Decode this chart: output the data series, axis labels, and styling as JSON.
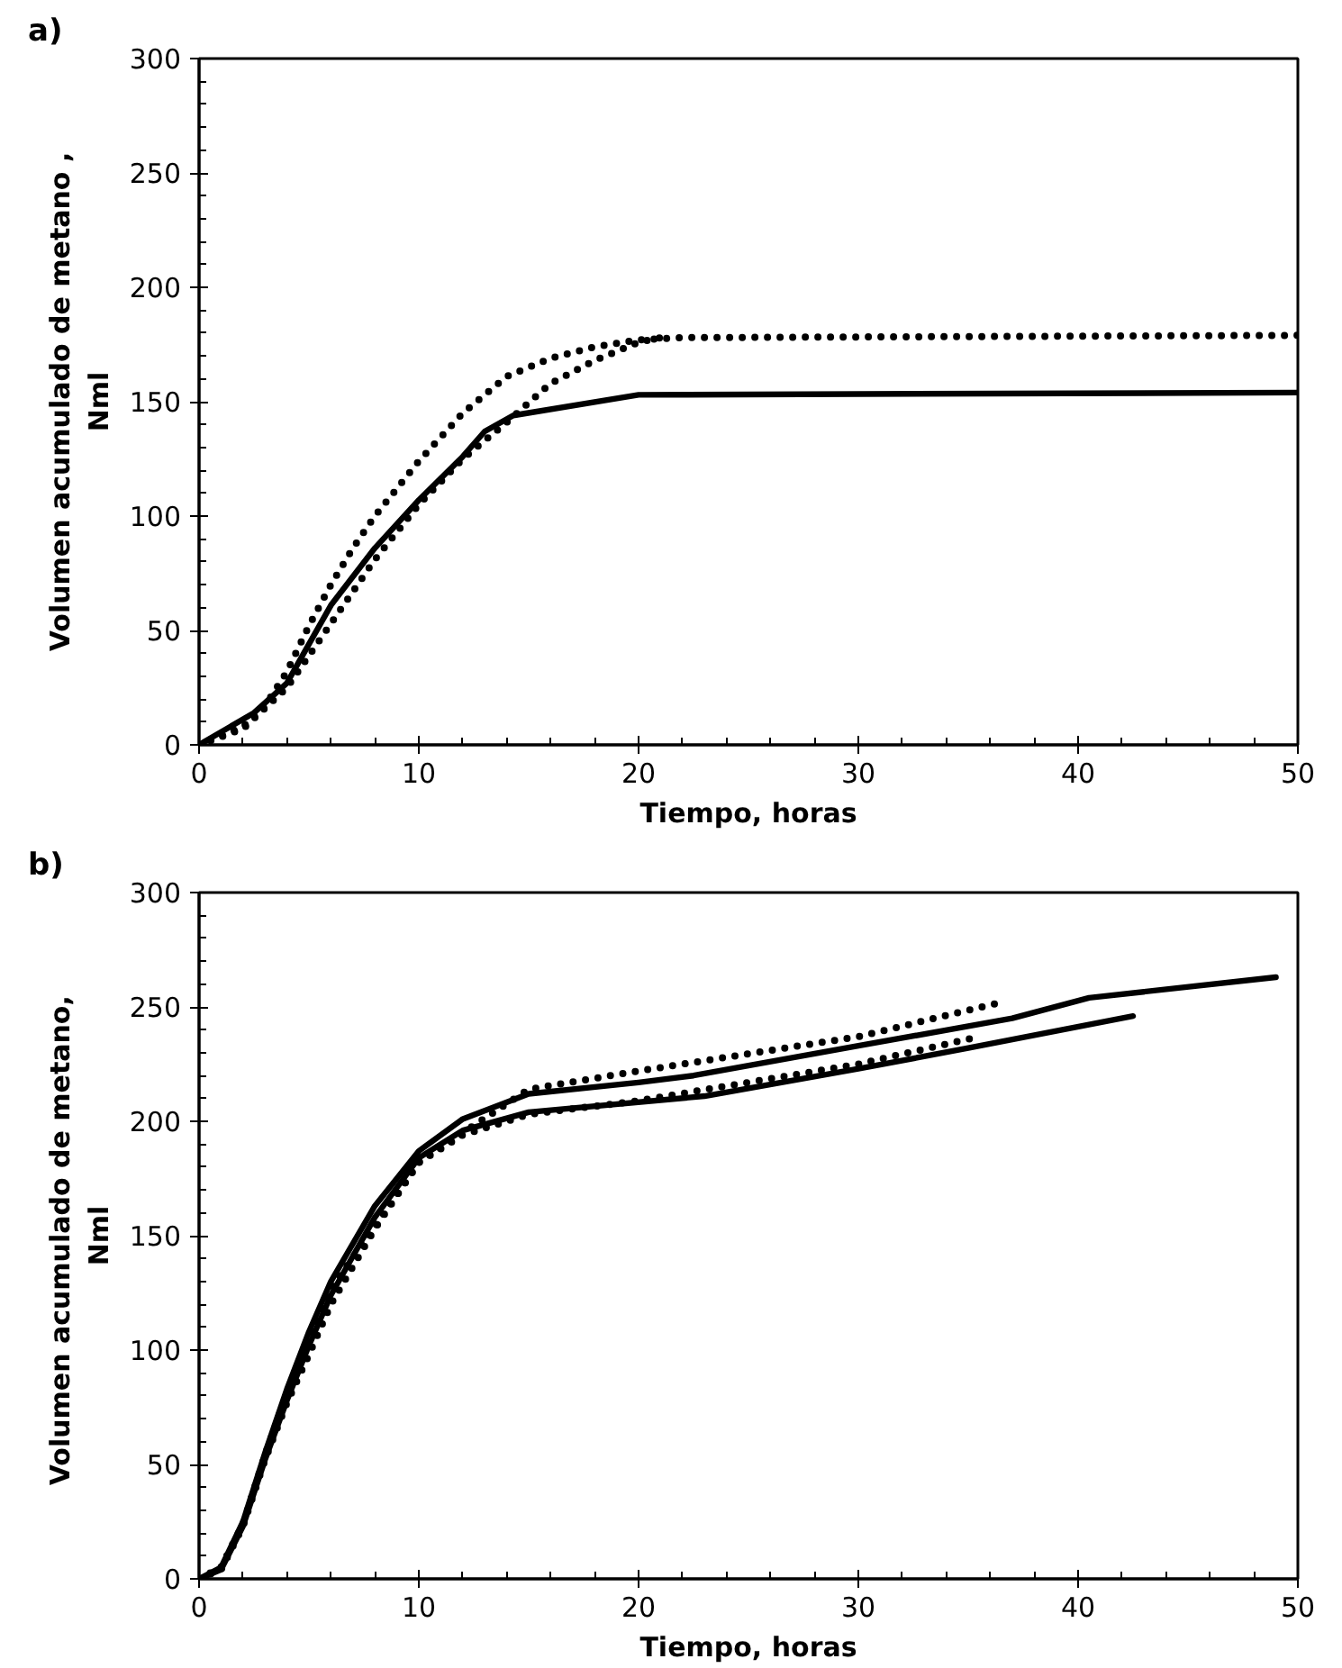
{
  "chart_data": [
    {
      "type": "line",
      "title": "a)",
      "xlabel": "Tiempo, horas",
      "ylabel": "Volumen acumulado de metano ,\nNml",
      "xlim": [
        0,
        50
      ],
      "ylim": [
        0,
        300
      ],
      "xticks": [
        0,
        10,
        20,
        30,
        40,
        50
      ],
      "yticks": [
        0,
        50,
        100,
        150,
        200,
        250,
        300
      ],
      "grid": false,
      "marker": "none",
      "series": [
        {
          "color": "#000000",
          "line_style": "solid",
          "x": [
            0,
            2.5,
            4,
            6,
            8,
            10,
            12,
            13,
            14.3,
            20,
            50
          ],
          "values": [
            0,
            14,
            27,
            61,
            86,
            107,
            126,
            137,
            144,
            153,
            154
          ]
        },
        {
          "color": "#000000",
          "line_style": "dotted",
          "x": [
            0,
            2,
            3,
            4,
            5,
            6,
            7,
            8,
            10,
            12,
            14,
            16,
            18,
            20,
            22,
            50
          ],
          "values": [
            0,
            8,
            17,
            32,
            52,
            70,
            86,
            100,
            124,
            145,
            161,
            169,
            174,
            177,
            178,
            179
          ]
        },
        {
          "color": "#000000",
          "line_style": "dotted",
          "x": [
            0,
            2,
            4,
            6,
            8,
            10,
            12,
            14,
            16,
            18,
            20,
            21
          ],
          "values": [
            0,
            7,
            25,
            53,
            81,
            105,
            125,
            141,
            158,
            168,
            176,
            178
          ]
        }
      ]
    },
    {
      "type": "line",
      "title": "b)",
      "xlabel": "Tiempo, horas",
      "ylabel": "Volumen acumulado  de metano,\nNml",
      "xlim": [
        0,
        50
      ],
      "ylim": [
        0,
        300
      ],
      "xticks": [
        0,
        10,
        20,
        30,
        40,
        50
      ],
      "yticks": [
        0,
        50,
        100,
        150,
        200,
        250,
        300
      ],
      "grid": false,
      "marker": "none",
      "series": [
        {
          "color": "#000000",
          "line_style": "solid",
          "x": [
            0,
            1,
            2,
            3,
            4,
            5,
            6,
            8,
            10,
            12,
            15,
            20,
            22.5,
            30,
            37,
            40.5,
            49
          ],
          "values": [
            0,
            5,
            25,
            55,
            83,
            108,
            130,
            163,
            187,
            201,
            212,
            217,
            220,
            233,
            245,
            254,
            263
          ]
        },
        {
          "color": "#000000",
          "line_style": "solid",
          "x": [
            0,
            1,
            2,
            3,
            4,
            5,
            6,
            8,
            10,
            12,
            15,
            23,
            30,
            35,
            42.5
          ],
          "values": [
            0,
            4,
            23,
            52,
            78,
            102,
            124,
            158,
            184,
            196,
            204,
            211,
            223,
            232,
            246
          ]
        },
        {
          "color": "#000000",
          "line_style": "dotted",
          "x": [
            0,
            1,
            2,
            3,
            4,
            5,
            6,
            8,
            10,
            12,
            15,
            20,
            30,
            36.5
          ],
          "values": [
            0,
            5,
            24,
            54,
            81,
            105,
            127,
            154,
            182,
            195,
            214,
            222,
            237,
            252
          ]
        },
        {
          "color": "#000000",
          "line_style": "dotted",
          "x": [
            0,
            1,
            2,
            3,
            4,
            5,
            6,
            8,
            10,
            12,
            15,
            20,
            30,
            35.5
          ],
          "values": [
            0,
            4,
            23,
            52,
            77,
            98,
            120,
            153,
            182,
            194,
            203,
            209,
            225,
            237
          ]
        }
      ]
    }
  ]
}
